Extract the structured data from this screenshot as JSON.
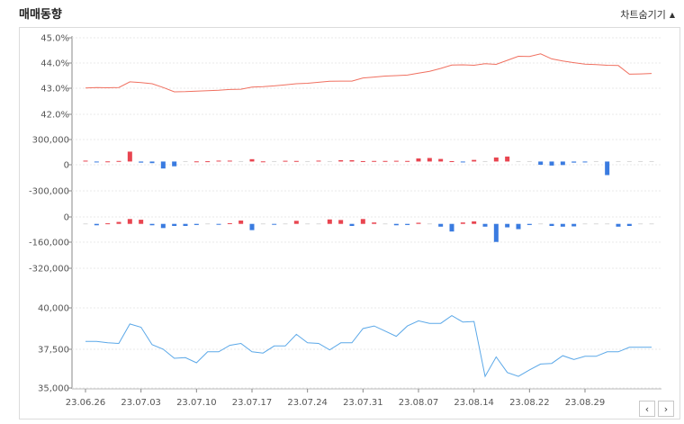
{
  "header": {
    "title": "매매동향",
    "toggle_label": "차트숨기기",
    "toggle_icon": "triangle-up-icon"
  },
  "nav": {
    "prev_label": "‹",
    "next_label": "›"
  },
  "colors": {
    "line_top": "#f07060",
    "positive": "#e84550",
    "negative": "#3a7be0",
    "line_bottom": "#5ba8e8"
  },
  "chart_data": [
    {
      "type": "line",
      "yticks": [
        "45.0%",
        "44.0%",
        "43.0%",
        "42.0%"
      ],
      "ylim": [
        41.8,
        45.0
      ],
      "values": [
        42.9,
        42.92,
        42.91,
        42.92,
        43.16,
        43.13,
        43.08,
        42.92,
        42.74,
        42.75,
        42.77,
        42.79,
        42.81,
        42.84,
        42.85,
        42.94,
        42.96,
        42.99,
        43.03,
        43.08,
        43.1,
        43.14,
        43.18,
        43.19,
        43.19,
        43.32,
        43.36,
        43.4,
        43.42,
        43.44,
        43.52,
        43.6,
        43.72,
        43.86,
        43.87,
        43.85,
        43.92,
        43.89,
        44.06,
        44.23,
        44.22,
        44.33,
        44.12,
        44.03,
        43.96,
        43.9,
        43.88,
        43.85,
        43.84,
        43.48,
        43.49,
        43.51
      ]
    },
    {
      "type": "bar",
      "yticks": [
        "300,000",
        "0",
        "-300,000"
      ],
      "ylim": [
        -400000,
        300000
      ],
      "values": [
        12000,
        -3000,
        2000,
        8000,
        135000,
        -15000,
        -22000,
        -95000,
        -65000,
        0,
        2000,
        4000,
        12000,
        12000,
        0,
        32000,
        2000,
        0,
        10000,
        8000,
        0,
        12000,
        0,
        18000,
        18000,
        6000,
        8000,
        8000,
        10000,
        8000,
        42000,
        48000,
        35000,
        5000,
        -12000,
        22000,
        0,
        55000,
        68000,
        0,
        0,
        -45000,
        -55000,
        -48000,
        -15000,
        -12000,
        0,
        -185000,
        0,
        0,
        0,
        0
      ]
    },
    {
      "type": "bar",
      "yticks": [
        "0",
        "-160,000",
        "-320,000"
      ],
      "ylim": [
        -320000,
        50000
      ],
      "values": [
        0,
        -10000,
        4000,
        14000,
        35000,
        30000,
        -10000,
        -30000,
        -15000,
        -15000,
        -8000,
        0,
        -4000,
        5000,
        24000,
        -45000,
        0,
        -5000,
        0,
        22000,
        0,
        0,
        32000,
        28000,
        -15000,
        35000,
        10000,
        0,
        -10000,
        -8000,
        8000,
        0,
        -20000,
        -55000,
        10000,
        18000,
        -20000,
        -130000,
        -25000,
        -38000,
        -8000,
        0,
        -15000,
        -20000,
        -18000,
        0,
        0,
        0,
        -20000,
        -15000,
        0,
        0
      ]
    },
    {
      "type": "line",
      "yticks": [
        "40,000",
        "37,500",
        "35,000"
      ],
      "ylim": [
        35000,
        41200
      ],
      "values": [
        38600,
        38600,
        38500,
        38450,
        39950,
        39700,
        38350,
        38000,
        37300,
        37350,
        36950,
        37800,
        37800,
        38300,
        38450,
        37800,
        37700,
        38250,
        38250,
        39150,
        38500,
        38450,
        37950,
        38500,
        38500,
        39600,
        39800,
        39400,
        39000,
        39800,
        40200,
        40000,
        40000,
        40600,
        40100,
        40150,
        35900,
        37400,
        36200,
        35900,
        36400,
        36850,
        36900,
        37500,
        37200,
        37450,
        37450,
        37800,
        37800,
        38150,
        38150,
        38150
      ]
    }
  ],
  "x_labels": [
    "23.06.26",
    "23.07.03",
    "23.07.10",
    "23.07.17",
    "23.07.24",
    "23.07.31",
    "23.08.07",
    "23.08.14",
    "23.08.22",
    "23.08.29"
  ]
}
